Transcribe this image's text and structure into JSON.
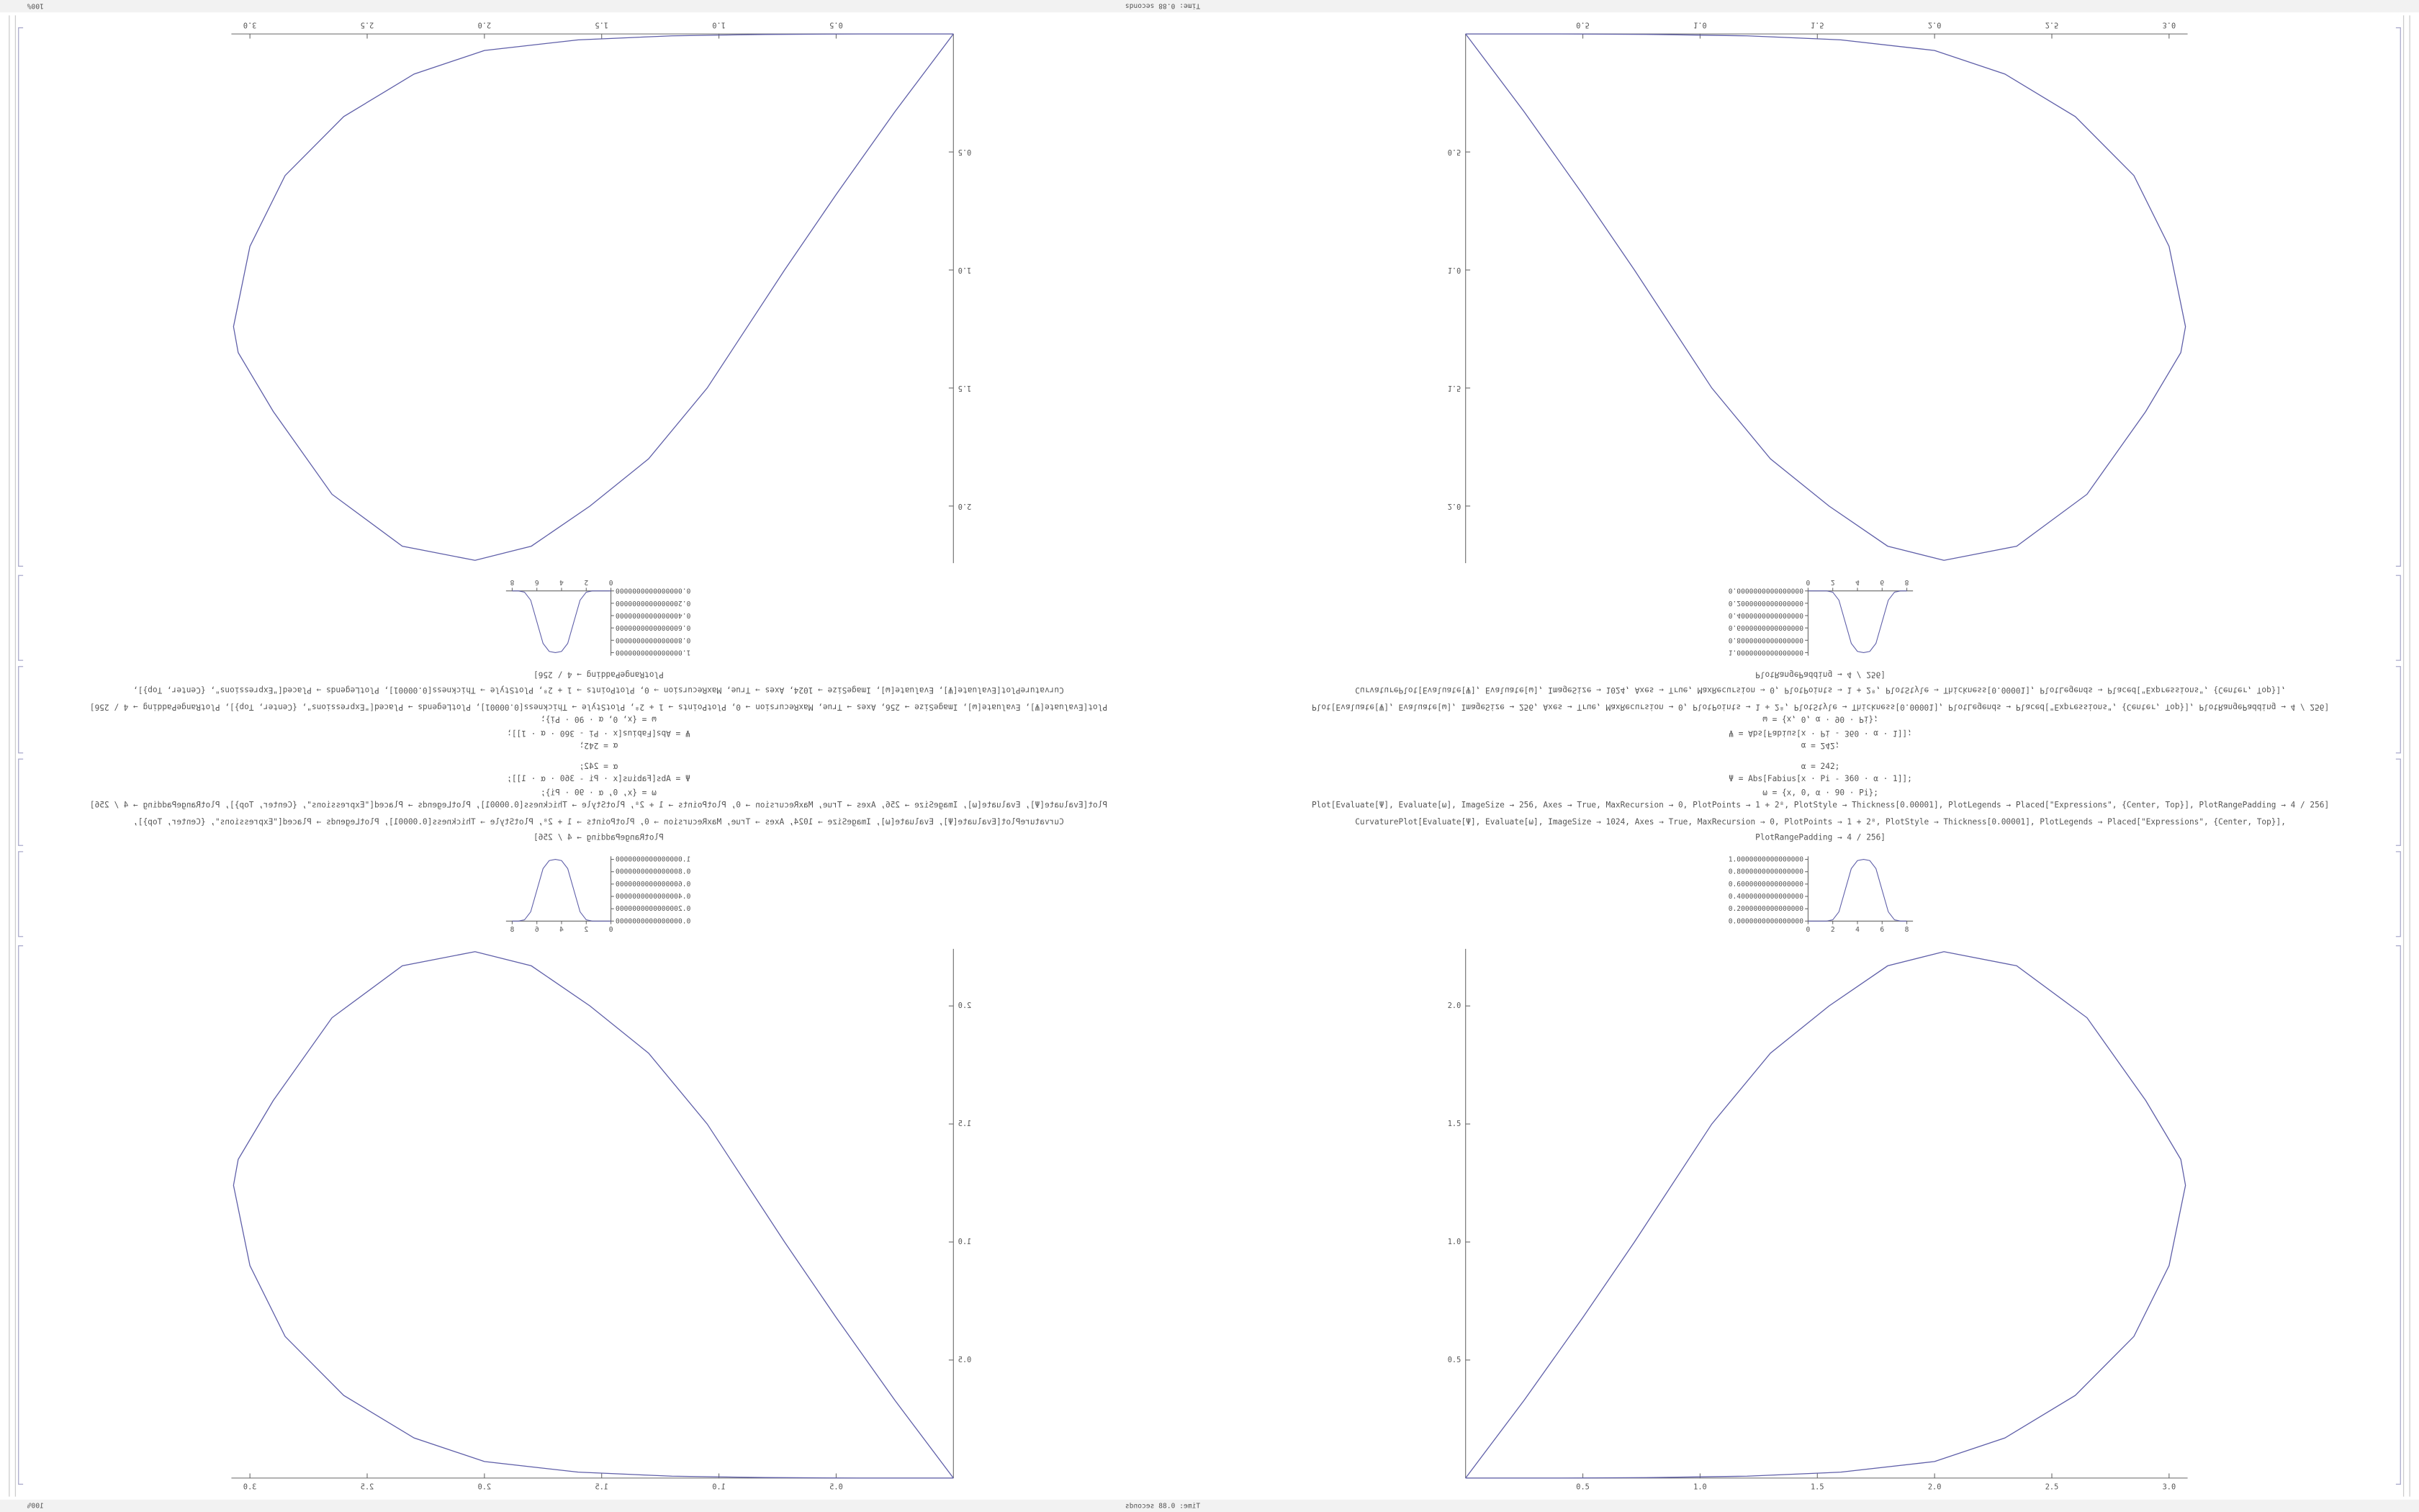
{
  "status": {
    "zoom": "100%",
    "info": "Time: 0.88 seconds"
  },
  "code": [
    "α = 242;",
    "Ψ = Abs[Fabius[x · Pi - 360 · α · 1]];",
    "ω = {x, 0, α · 90 · Pi};",
    "Plot[Evaluate[Ψ], Evaluate[ω], ImageSize → 256, Axes → True, MaxRecursion → 0, PlotPoints → 1 + 2⁸, PlotStyle → Thickness[0.00001], PlotLegends → Placed[\"Expressions\", {Center, Top}], PlotRangePadding → 4 / 256]",
    "CurvaturePlot[Evaluate[Ψ], Evaluate[ω], ImageSize → 1024, Axes → True, MaxRecursion → 0, PlotPoints → 1 + 2⁸, PlotStyle → Thickness[0.00001], PlotLegends → Placed[\"Expressions\", {Center, Top}],",
    "PlotRangePadding → 4 / 256]"
  ],
  "small_plot": {
    "xlim": [
      0,
      8
    ],
    "ylim": [
      0,
      1
    ],
    "xticks": [
      0,
      2,
      4,
      6,
      8
    ],
    "yticks": [
      {
        "value": 0,
        "label": "0.0000000000000000"
      },
      {
        "value": 0.2,
        "label": "0.2000000000000000"
      },
      {
        "value": 0.4,
        "label": "0.4000000000000000"
      },
      {
        "value": 0.6,
        "label": "0.6000000000000000"
      },
      {
        "value": 0.8,
        "label": "0.8000000000000000"
      },
      {
        "value": 1,
        "label": "1.0000000000000000"
      }
    ],
    "x": [
      0,
      1,
      1.5,
      2,
      2.5,
      3,
      3.5,
      4,
      4.5,
      5,
      5.5,
      6,
      6.5,
      7,
      7.5,
      8
    ],
    "y": [
      0,
      0,
      0,
      0.02,
      0.15,
      0.5,
      0.85,
      0.98,
      1,
      0.98,
      0.85,
      0.5,
      0.15,
      0.02,
      0,
      0
    ]
  },
  "main_plot": {
    "xlim": [
      0,
      3.1
    ],
    "ylim": [
      0,
      2.25
    ],
    "xticks": [
      0.5,
      {
        "value": 1,
        "label": "1.0"
      },
      1.5,
      {
        "value": 2,
        "label": "2.0"
      },
      2.5,
      {
        "value": 3,
        "label": "3.0"
      }
    ],
    "yticks": [
      0.5,
      {
        "value": 1,
        "label": "1.0"
      },
      1.5,
      {
        "value": 2,
        "label": "2.0"
      }
    ],
    "x": [
      0,
      0.25,
      0.5,
      0.72,
      1.05,
      1.3,
      1.55,
      1.8,
      2.04,
      2.35,
      2.65,
      2.9,
      3.05,
      3.07,
      3.0,
      2.85,
      2.6,
      2.3,
      2.0,
      1.6,
      1.2,
      0.8,
      0.4,
      0
    ],
    "y": [
      0,
      0.33,
      0.68,
      1.0,
      1.5,
      1.8,
      2.0,
      2.17,
      2.23,
      2.17,
      1.95,
      1.6,
      1.35,
      1.24,
      0.9,
      0.6,
      0.35,
      0.17,
      0.07,
      0.025,
      0.008,
      0.002,
      0,
      0
    ]
  }
}
